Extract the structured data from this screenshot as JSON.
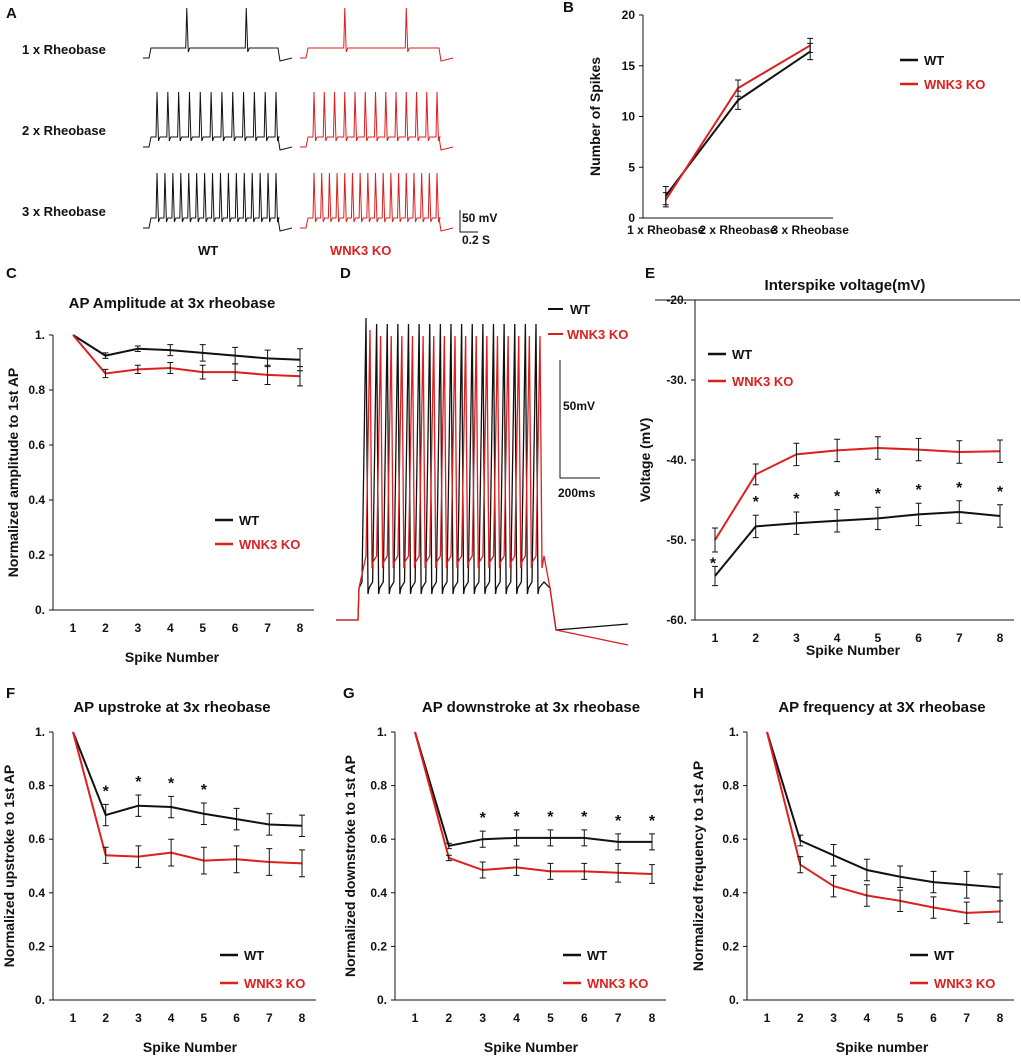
{
  "colors": {
    "wt": "#111111",
    "ko": "#dd1f1f",
    "axis": "#111111"
  },
  "legend": {
    "wt": "WT",
    "ko": "WNK3 KO"
  },
  "panelA": {
    "panel": "A",
    "rows": [
      "1 x Rheobase",
      "2 x Rheobase",
      "3 x Rheobase"
    ],
    "spikes_wt": [
      2,
      12,
      16
    ],
    "spikes_ko": [
      2,
      13,
      17
    ],
    "col_wt": "WT",
    "col_ko": "WNK3 KO",
    "scale_v": "50 mV",
    "scale_t": "0.2 S"
  },
  "panelD": {
    "panel": "D",
    "spikes": 17,
    "scale_v": "50mV",
    "scale_t": "200ms",
    "legend_wt": "WT",
    "legend_ko": "WNK3 KO"
  },
  "chart_data": [
    {
      "panel": "B",
      "type": "line",
      "title": "",
      "xlabel": "",
      "ylabel": "Number of Spikes",
      "categories": [
        "1 x Rheobase",
        "2 x Rheobase",
        "3 x Rheobase"
      ],
      "yticks": [
        "0",
        "5",
        "10",
        "15",
        "20"
      ],
      "ylim": [
        0,
        20
      ],
      "series": [
        {
          "name": "WT",
          "values": [
            2.2,
            11.6,
            16.4
          ],
          "err": [
            0.9,
            0.9,
            0.8
          ]
        },
        {
          "name": "WNK3 KO",
          "values": [
            1.8,
            12.8,
            17.0
          ],
          "err": [
            0.7,
            0.8,
            0.7
          ]
        }
      ],
      "stars": [],
      "legend": "right"
    },
    {
      "panel": "C",
      "type": "line",
      "title": "AP Amplitude at 3x rheobase",
      "xlabel": "Spike Number",
      "ylabel": "Normalized amplitude to 1st AP",
      "categories": [
        "1",
        "2",
        "3",
        "4",
        "5",
        "6",
        "7",
        "8"
      ],
      "yticks": [
        "0.",
        "0.2",
        "0.4",
        "0.6",
        "0.8",
        "1."
      ],
      "ylim": [
        0,
        1
      ],
      "series": [
        {
          "name": "WT",
          "values": [
            1,
            0.925,
            0.95,
            0.945,
            0.935,
            0.925,
            0.915,
            0.91
          ],
          "err": [
            0,
            0.01,
            0.01,
            0.02,
            0.03,
            0.03,
            0.03,
            0.04
          ]
        },
        {
          "name": "WNK3 KO",
          "values": [
            1,
            0.86,
            0.875,
            0.88,
            0.865,
            0.865,
            0.855,
            0.85
          ],
          "err": [
            0,
            0.015,
            0.015,
            0.02,
            0.025,
            0.03,
            0.035,
            0.035
          ]
        }
      ],
      "stars": [],
      "legend": "center-right"
    },
    {
      "panel": "E",
      "type": "line",
      "title": "Interspike voltage(mV)",
      "xlabel": "Spike Number",
      "ylabel": "Voltage (mV)",
      "categories": [
        "1",
        "2",
        "3",
        "4",
        "5",
        "6",
        "7",
        "8"
      ],
      "yticks": [
        "-60.",
        "-50.",
        "-40.",
        "-30.",
        "-20."
      ],
      "ylim": [
        -60,
        -20
      ],
      "series": [
        {
          "name": "WT",
          "values": [
            -54.5,
            -48.3,
            -47.9,
            -47.6,
            -47.3,
            -46.8,
            -46.5,
            -47.0
          ],
          "err": [
            1.2,
            1.4,
            1.4,
            1.4,
            1.4,
            1.4,
            1.4,
            1.4
          ]
        },
        {
          "name": "WNK3 KO",
          "values": [
            -50.0,
            -41.8,
            -39.3,
            -38.8,
            -38.5,
            -38.7,
            -39.0,
            -38.9
          ],
          "err": [
            1.5,
            1.3,
            1.4,
            1.4,
            1.4,
            1.4,
            1.4,
            1.4
          ]
        }
      ],
      "stars": [
        "1",
        "2",
        "3",
        "4",
        "5",
        "6",
        "7",
        "8"
      ],
      "legend": "top-left"
    },
    {
      "panel": "F",
      "type": "line",
      "title": "AP upstroke at 3x rheobase",
      "xlabel": "Spike Number",
      "ylabel": "Normalized upstroke to 1st AP",
      "categories": [
        "1",
        "2",
        "3",
        "4",
        "5",
        "6",
        "7",
        "8"
      ],
      "yticks": [
        "0.",
        "0.2",
        "0.4",
        "0.6",
        "0.8",
        "1."
      ],
      "ylim": [
        0,
        1
      ],
      "series": [
        {
          "name": "WT",
          "values": [
            1,
            0.69,
            0.725,
            0.72,
            0.695,
            0.675,
            0.655,
            0.65
          ],
          "err": [
            0,
            0.04,
            0.04,
            0.04,
            0.04,
            0.04,
            0.04,
            0.04
          ]
        },
        {
          "name": "WNK3 KO",
          "values": [
            1,
            0.54,
            0.535,
            0.55,
            0.52,
            0.525,
            0.515,
            0.51
          ],
          "err": [
            0,
            0.03,
            0.04,
            0.05,
            0.05,
            0.05,
            0.05,
            0.05
          ]
        }
      ],
      "stars": [
        "2",
        "3",
        "4",
        "5"
      ],
      "legend": "bottom-right"
    },
    {
      "panel": "G",
      "type": "line",
      "title": "AP downstroke at 3x rheobase",
      "xlabel": "Spike Number",
      "ylabel": "Normalized downstroke to 1st AP",
      "categories": [
        "1",
        "2",
        "3",
        "4",
        "5",
        "6",
        "7",
        "8"
      ],
      "yticks": [
        "0.",
        "0.2",
        "0.4",
        "0.6",
        "0.8",
        "1."
      ],
      "ylim": [
        0,
        1
      ],
      "series": [
        {
          "name": "WT",
          "values": [
            1,
            0.575,
            0.6,
            0.605,
            0.605,
            0.605,
            0.59,
            0.59
          ],
          "err": [
            0,
            0.01,
            0.03,
            0.03,
            0.03,
            0.03,
            0.03,
            0.03
          ]
        },
        {
          "name": "WNK3 KO",
          "values": [
            1,
            0.53,
            0.485,
            0.495,
            0.48,
            0.48,
            0.475,
            0.47
          ],
          "err": [
            0,
            0.01,
            0.03,
            0.03,
            0.03,
            0.03,
            0.035,
            0.035
          ]
        }
      ],
      "stars": [
        "3",
        "4",
        "5",
        "6",
        "7",
        "8"
      ],
      "legend": "bottom-right"
    },
    {
      "panel": "H",
      "type": "line",
      "title": "AP frequency at  3X rheobase",
      "xlabel": "Spike number",
      "ylabel": "Normalized frequency to 1st AP",
      "categories": [
        "1",
        "2",
        "3",
        "4",
        "5",
        "6",
        "7",
        "8"
      ],
      "yticks": [
        "0.",
        "0.2",
        "0.4",
        "0.6",
        "0.8",
        "1."
      ],
      "ylim": [
        0,
        1
      ],
      "series": [
        {
          "name": "WT",
          "values": [
            1,
            0.595,
            0.54,
            0.485,
            0.46,
            0.44,
            0.43,
            0.42
          ],
          "err": [
            0,
            0.02,
            0.04,
            0.04,
            0.04,
            0.04,
            0.05,
            0.05
          ]
        },
        {
          "name": "WNK3 KO",
          "values": [
            1,
            0.505,
            0.425,
            0.39,
            0.37,
            0.345,
            0.325,
            0.33
          ],
          "err": [
            0,
            0.03,
            0.04,
            0.04,
            0.04,
            0.04,
            0.04,
            0.04
          ]
        }
      ],
      "stars": [],
      "legend": "bottom-right"
    }
  ]
}
